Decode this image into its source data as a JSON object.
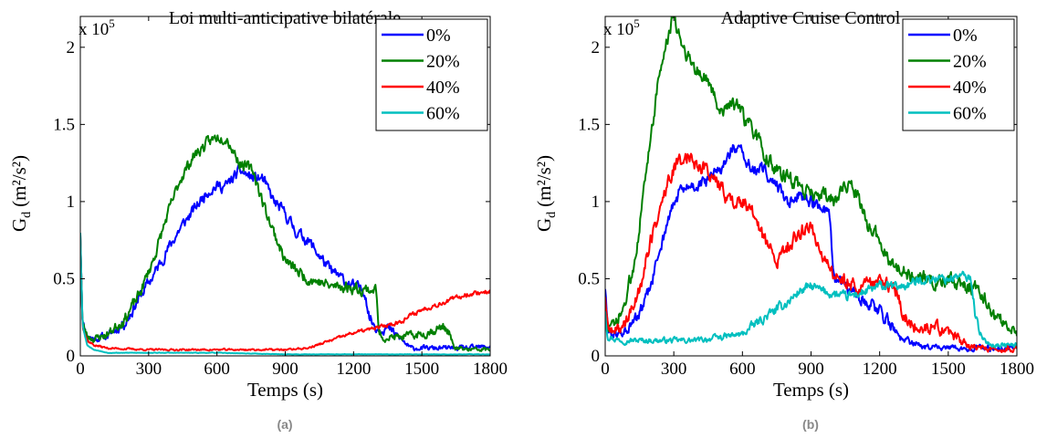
{
  "chart_data": [
    {
      "type": "line",
      "title": "Loi multi-anticipative bilatérale",
      "xlabel": "Temps (s)",
      "ylabel_main": "G",
      "ylabel_sub": "d",
      "ylabel_unit": "(m²/s²)",
      "exponent_base": "x 10",
      "exponent_power": "5",
      "caption": "(a)",
      "xlim": [
        0,
        1800
      ],
      "ylim": [
        0,
        2.2
      ],
      "xticks": [
        0,
        300,
        600,
        900,
        1200,
        1500,
        1800
      ],
      "yticks": [
        0,
        0.5,
        1,
        1.5,
        2
      ],
      "ytick_labels": [
        "0",
        "0.5",
        "1",
        "1.5",
        "2"
      ],
      "legend_position": "top-right",
      "series": [
        {
          "name": "0%",
          "color": "#0000ff",
          "noise": 0.03,
          "seed": 11,
          "x": [
            0,
            10,
            30,
            60,
            120,
            200,
            260,
            320,
            380,
            440,
            500,
            560,
            600,
            640,
            700,
            760,
            800,
            850,
            900,
            950,
            1000,
            1050,
            1100,
            1150,
            1200,
            1250,
            1270,
            1300,
            1350,
            1400,
            1450,
            1500,
            1600,
            1700,
            1800
          ],
          "y": [
            0.8,
            0.22,
            0.13,
            0.11,
            0.13,
            0.22,
            0.38,
            0.52,
            0.68,
            0.83,
            0.95,
            1.07,
            1.1,
            1.1,
            1.2,
            1.15,
            1.15,
            1.0,
            0.92,
            0.8,
            0.75,
            0.65,
            0.55,
            0.5,
            0.45,
            0.42,
            0.25,
            0.18,
            0.18,
            0.12,
            0.05,
            0.05,
            0.05,
            0.05,
            0.06
          ]
        },
        {
          "name": "20%",
          "color": "#008000",
          "noise": 0.03,
          "seed": 23,
          "x": [
            0,
            10,
            30,
            60,
            120,
            200,
            260,
            320,
            380,
            440,
            500,
            560,
            600,
            640,
            700,
            760,
            800,
            850,
            900,
            950,
            1000,
            1050,
            1100,
            1150,
            1200,
            1250,
            1300,
            1310,
            1330,
            1400,
            1500,
            1600,
            1620,
            1640,
            1700,
            1800
          ],
          "y": [
            0.8,
            0.2,
            0.13,
            0.11,
            0.14,
            0.25,
            0.4,
            0.62,
            0.9,
            1.15,
            1.3,
            1.38,
            1.42,
            1.42,
            1.25,
            1.2,
            1.0,
            0.8,
            0.62,
            0.55,
            0.5,
            0.48,
            0.45,
            0.45,
            0.44,
            0.43,
            0.43,
            0.15,
            0.12,
            0.12,
            0.14,
            0.19,
            0.15,
            0.05,
            0.04,
            0.04
          ]
        },
        {
          "name": "40%",
          "color": "#ff0000",
          "noise": 0.012,
          "seed": 37,
          "x": [
            0,
            10,
            30,
            60,
            120,
            300,
            600,
            900,
            1000,
            1100,
            1200,
            1300,
            1350,
            1400,
            1500,
            1600,
            1700,
            1800
          ],
          "y": [
            0.8,
            0.2,
            0.1,
            0.07,
            0.05,
            0.04,
            0.04,
            0.04,
            0.05,
            0.1,
            0.15,
            0.18,
            0.2,
            0.22,
            0.3,
            0.35,
            0.4,
            0.42
          ]
        },
        {
          "name": "60%",
          "color": "#00bfbf",
          "noise": 0.004,
          "seed": 53,
          "x": [
            0,
            10,
            30,
            60,
            120,
            300,
            600,
            900,
            1200,
            1500,
            1800
          ],
          "y": [
            0.8,
            0.2,
            0.07,
            0.04,
            0.02,
            0.02,
            0.02,
            0.01,
            0.01,
            0.01,
            0.01
          ]
        }
      ]
    },
    {
      "type": "line",
      "title": "Adaptive Cruise Control",
      "xlabel": "Temps (s)",
      "ylabel_main": "G",
      "ylabel_sub": "d",
      "ylabel_unit": "(m²/s²)",
      "exponent_base": "x 10",
      "exponent_power": "5",
      "caption": "(b)",
      "xlim": [
        0,
        1800
      ],
      "ylim": [
        0,
        2.2
      ],
      "xticks": [
        0,
        300,
        600,
        900,
        1200,
        1500,
        1800
      ],
      "yticks": [
        0,
        0.5,
        1,
        1.5,
        2
      ],
      "ytick_labels": [
        "0",
        "0.5",
        "1",
        "1.5",
        "2"
      ],
      "legend_position": "top-right",
      "series": [
        {
          "name": "0%",
          "color": "#0000ff",
          "noise": 0.035,
          "seed": 61,
          "x": [
            0,
            10,
            40,
            80,
            120,
            160,
            200,
            240,
            280,
            320,
            380,
            440,
            500,
            560,
            600,
            650,
            700,
            750,
            800,
            850,
            900,
            950,
            980,
            1000,
            1050,
            1100,
            1150,
            1200,
            1250,
            1300,
            1350,
            1400,
            1500,
            1600,
            1700,
            1800
          ],
          "y": [
            0.45,
            0.18,
            0.13,
            0.15,
            0.2,
            0.3,
            0.45,
            0.7,
            0.9,
            1.05,
            1.1,
            1.12,
            1.2,
            1.35,
            1.3,
            1.2,
            1.2,
            1.1,
            1.0,
            1.05,
            1.0,
            0.95,
            0.9,
            0.5,
            0.45,
            0.4,
            0.35,
            0.3,
            0.2,
            0.1,
            0.08,
            0.06,
            0.05,
            0.05,
            0.05,
            0.06
          ]
        },
        {
          "name": "20%",
          "color": "#008000",
          "noise": 0.04,
          "seed": 73,
          "x": [
            0,
            10,
            40,
            80,
            120,
            160,
            200,
            240,
            280,
            300,
            320,
            360,
            400,
            440,
            500,
            560,
            600,
            650,
            700,
            750,
            800,
            850,
            900,
            950,
            1000,
            1050,
            1100,
            1150,
            1200,
            1250,
            1300,
            1350,
            1400,
            1450,
            1500,
            1550,
            1600,
            1650,
            1700,
            1750,
            1800
          ],
          "y": [
            0.3,
            0.2,
            0.18,
            0.3,
            0.55,
            0.95,
            1.45,
            1.85,
            2.1,
            2.2,
            2.1,
            1.95,
            1.85,
            1.8,
            1.6,
            1.65,
            1.55,
            1.45,
            1.3,
            1.2,
            1.15,
            1.1,
            1.05,
            1.05,
            1.0,
            1.1,
            1.05,
            0.85,
            0.75,
            0.6,
            0.55,
            0.5,
            0.5,
            0.45,
            0.5,
            0.45,
            0.45,
            0.4,
            0.25,
            0.2,
            0.15
          ]
        },
        {
          "name": "40%",
          "color": "#ff0000",
          "noise": 0.04,
          "seed": 89,
          "x": [
            0,
            10,
            40,
            80,
            120,
            160,
            200,
            240,
            280,
            320,
            360,
            400,
            450,
            500,
            550,
            600,
            650,
            700,
            750,
            800,
            850,
            900,
            950,
            1000,
            1050,
            1100,
            1150,
            1200,
            1250,
            1280,
            1300,
            1350,
            1400,
            1450,
            1500,
            1550,
            1600,
            1650,
            1700,
            1800
          ],
          "y": [
            0.4,
            0.18,
            0.15,
            0.2,
            0.3,
            0.5,
            0.75,
            0.95,
            1.15,
            1.25,
            1.3,
            1.25,
            1.2,
            1.1,
            1.0,
            1.0,
            0.9,
            0.75,
            0.6,
            0.72,
            0.8,
            0.85,
            0.65,
            0.5,
            0.5,
            0.45,
            0.45,
            0.5,
            0.45,
            0.4,
            0.25,
            0.2,
            0.18,
            0.18,
            0.15,
            0.1,
            0.06,
            0.05,
            0.05,
            0.05
          ]
        },
        {
          "name": "60%",
          "color": "#00bfbf",
          "noise": 0.025,
          "seed": 97,
          "x": [
            0,
            10,
            40,
            80,
            120,
            200,
            300,
            400,
            500,
            600,
            650,
            700,
            750,
            800,
            850,
            900,
            950,
            1000,
            1050,
            1100,
            1150,
            1200,
            1300,
            1400,
            1500,
            1550,
            1600,
            1620,
            1650,
            1700,
            1800
          ],
          "y": [
            0.3,
            0.13,
            0.11,
            0.1,
            0.1,
            0.1,
            0.1,
            0.1,
            0.12,
            0.14,
            0.2,
            0.25,
            0.3,
            0.35,
            0.42,
            0.45,
            0.42,
            0.4,
            0.38,
            0.4,
            0.42,
            0.45,
            0.45,
            0.5,
            0.5,
            0.52,
            0.5,
            0.25,
            0.1,
            0.07,
            0.07
          ]
        }
      ]
    }
  ]
}
